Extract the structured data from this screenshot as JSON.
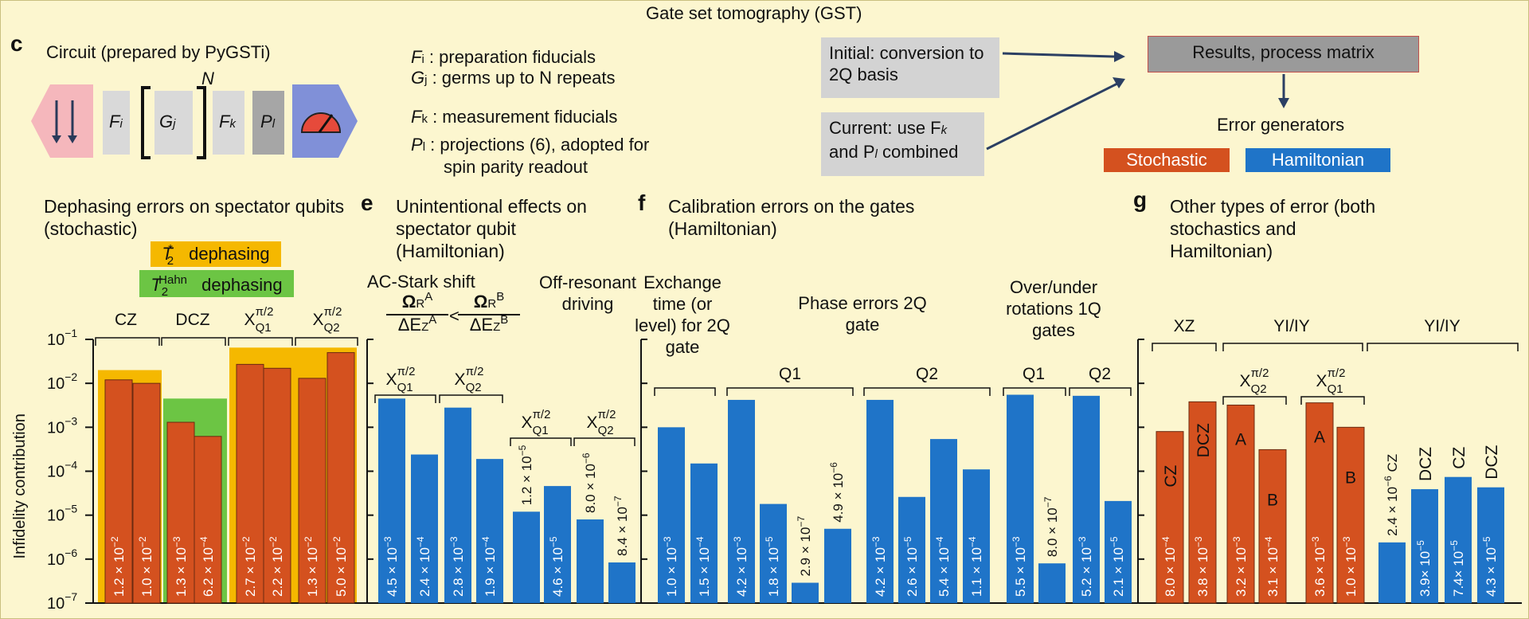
{
  "figure_title": "Gate set tomography (GST)",
  "panel_c": {
    "label": "c",
    "circuit_title": "Circuit (prepared by PyGSTi)",
    "boxes": [
      "F",
      "G",
      "F",
      "P"
    ],
    "box_subs": [
      "i",
      "j",
      "k",
      "l"
    ],
    "exponent": "N",
    "legend": [
      {
        "sym": "F",
        "sub": "i",
        "text": " : preparation fiducials"
      },
      {
        "sym": "G",
        "sub": "j",
        "text": " : germs up to N repeats"
      },
      {
        "sym": "F",
        "sub": "k",
        "text": " : measurement fiducials"
      },
      {
        "sym": "P",
        "sub": "l",
        "text": " : projections (6), adopted for"
      }
    ],
    "legend_cont": "spin parity readout"
  },
  "flow": {
    "initial": "Initial: conversion to 2Q basis",
    "current": "Current: use F",
    "current_sub_k": "k",
    "current_mid": "and P",
    "current_sub_l": "l",
    "current_end": " combined",
    "results": "Results, process matrix",
    "error_generators": "Error generators",
    "stochastic": "Stochastic",
    "hamiltonian": "Hamiltonian"
  },
  "panel_d": {
    "title": "Dephasing errors on spectator qubits (stochastic)",
    "t2star_sym": "T",
    "t2star_sub": "2",
    "t2star_sup": "*",
    "t2star_text": " dephasing",
    "t2hahn_sym": "T",
    "t2hahn_sub": "2",
    "t2hahn_sup": "Hahn",
    "t2hahn_text": " dephasing"
  },
  "panel_e": {
    "label": "e",
    "title": "Unintentional effects on spectator qubit (Hamiltonian)",
    "acstark": "AC-Stark shift",
    "frac_a_num": "Ω",
    "frac_a_num_sub": "R",
    "frac_a_num_sup": "A",
    "frac_a_den": "ΔE",
    "frac_a_den_sub": "Z",
    "frac_a_den_sup": "A",
    "lt": "<",
    "frac_b_num_sup": "B",
    "frac_b_den_sup": "B",
    "offres": "Off-resonant driving"
  },
  "panel_f": {
    "label": "f",
    "title": "Calibration errors on the gates (Hamiltonian)",
    "exchange": "Exchange time (or level) for 2Q gate",
    "phase2q": "Phase errors 2Q gate",
    "overunder": "Over/under rotations 1Q gates"
  },
  "panel_g": {
    "label": "g",
    "title": "Other types of error (both stochastics and Hamiltonian)"
  },
  "group_labels": {
    "cz": "CZ",
    "dcz": "DCZ",
    "xq1": "X",
    "xq2": "X",
    "q1": "Q1",
    "q2": "Q2",
    "xz": "XZ",
    "yiiy": "YI/IY",
    "pi2": "π/2",
    "Q1": "Q1",
    "Q2": "Q2"
  },
  "colors": {
    "stochastic": "#d4511f",
    "hamiltonian": "#1f74c8",
    "t2star": "#f5b800",
    "t2hahn": "#6cc544",
    "background": "#fcf6cf",
    "gray": "#d3d3d3",
    "results_box": "#9a9a9a"
  },
  "chart_data": {
    "type": "bar",
    "title": "Gate set tomography (GST)",
    "ylabel": "Infidelity contribution",
    "yscale": "log",
    "ylim": [
      1e-07,
      0.1
    ],
    "yticks": [
      {
        "v": 0.1,
        "m": "10",
        "e": "−1"
      },
      {
        "v": 0.01,
        "m": "10",
        "e": "−2"
      },
      {
        "v": 0.001,
        "m": "10",
        "e": "−3"
      },
      {
        "v": 0.0001,
        "m": "10",
        "e": "−4"
      },
      {
        "v": 1e-05,
        "m": "10",
        "e": "−5"
      },
      {
        "v": 1e-06,
        "m": "10",
        "e": "−6"
      },
      {
        "v": 1e-07,
        "m": "10",
        "e": "−7"
      }
    ],
    "bars": [
      {
        "panel": "d",
        "group": "CZ",
        "kind": "stochastic",
        "value": 0.012,
        "label": "1.2 × 10",
        "exp": "−2"
      },
      {
        "panel": "d",
        "group": "CZ",
        "kind": "stochastic",
        "value": 0.01,
        "label": "1.0 × 10",
        "exp": "−2"
      },
      {
        "panel": "d",
        "group": "DCZ",
        "kind": "stochastic",
        "value": 0.0013,
        "label": "1.3 × 10",
        "exp": "−3"
      },
      {
        "panel": "d",
        "group": "DCZ",
        "kind": "stochastic",
        "value": 0.00062,
        "label": "6.2 × 10",
        "exp": "−4"
      },
      {
        "panel": "d",
        "group": "X Q1 π/2",
        "kind": "stochastic",
        "value": 0.027,
        "label": "2.7 × 10",
        "exp": "−2"
      },
      {
        "panel": "d",
        "group": "X Q1 π/2",
        "kind": "stochastic",
        "value": 0.022,
        "label": "2.2 × 10",
        "exp": "−2"
      },
      {
        "panel": "d",
        "group": "X Q2 π/2",
        "kind": "stochastic",
        "value": 0.013,
        "label": "1.3 × 10",
        "exp": "−2"
      },
      {
        "panel": "d",
        "group": "X Q2 π/2",
        "kind": "stochastic",
        "value": 0.05,
        "label": "5.0 × 10",
        "exp": "−2"
      },
      {
        "panel": "e",
        "group": "AC-Stark X Q1",
        "kind": "hamiltonian",
        "value": 0.0045,
        "label": "4.5 × 10",
        "exp": "−3"
      },
      {
        "panel": "e",
        "group": "AC-Stark X Q1",
        "kind": "hamiltonian",
        "value": 0.00024,
        "label": "2.4 × 10",
        "exp": "−4"
      },
      {
        "panel": "e",
        "group": "AC-Stark X Q2",
        "kind": "hamiltonian",
        "value": 0.0028,
        "label": "2.8 × 10",
        "exp": "−3"
      },
      {
        "panel": "e",
        "group": "AC-Stark X Q2",
        "kind": "hamiltonian",
        "value": 0.00019,
        "label": "1.9 × 10",
        "exp": "−4"
      },
      {
        "panel": "e",
        "group": "Off-resonant X Q1",
        "kind": "hamiltonian",
        "value": 1.2e-05,
        "label": "1.2 × 10",
        "exp": "−5"
      },
      {
        "panel": "e",
        "group": "Off-resonant X Q1",
        "kind": "hamiltonian",
        "value": 4.6e-05,
        "label": "4.6 × 10",
        "exp": "−5"
      },
      {
        "panel": "e",
        "group": "Off-resonant X Q2",
        "kind": "hamiltonian",
        "value": 8e-06,
        "label": "8.0 × 10",
        "exp": "−6"
      },
      {
        "panel": "e",
        "group": "Off-resonant X Q2",
        "kind": "hamiltonian",
        "value": 8.4e-07,
        "label": "8.4 × 10",
        "exp": "−7"
      },
      {
        "panel": "f",
        "group": "Exchange",
        "kind": "hamiltonian",
        "value": 0.001,
        "label": "1.0 × 10",
        "exp": "−3"
      },
      {
        "panel": "f",
        "group": "Exchange",
        "kind": "hamiltonian",
        "value": 0.00015,
        "label": "1.5 × 10",
        "exp": "−4"
      },
      {
        "panel": "f",
        "group": "Phase 2Q Q1",
        "kind": "hamiltonian",
        "value": 0.0042,
        "label": "4.2 × 10",
        "exp": "−3"
      },
      {
        "panel": "f",
        "group": "Phase 2Q Q1",
        "kind": "hamiltonian",
        "value": 1.8e-05,
        "label": "1.8 × 10",
        "exp": "−5"
      },
      {
        "panel": "f",
        "group": "Phase 2Q Q1",
        "kind": "hamiltonian",
        "value": 2.9e-07,
        "label": "2.9 × 10",
        "exp": "−7"
      },
      {
        "panel": "f",
        "group": "Phase 2Q Q1",
        "kind": "hamiltonian",
        "value": 4.9e-06,
        "label": "4.9 × 10",
        "exp": "−6"
      },
      {
        "panel": "f",
        "group": "Phase 2Q Q2",
        "kind": "hamiltonian",
        "value": 0.0042,
        "label": "4.2 × 10",
        "exp": "−3"
      },
      {
        "panel": "f",
        "group": "Phase 2Q Q2",
        "kind": "hamiltonian",
        "value": 2.6e-05,
        "label": "2.6 × 10",
        "exp": "−5"
      },
      {
        "panel": "f",
        "group": "Phase 2Q Q2",
        "kind": "hamiltonian",
        "value": 0.00054,
        "label": "5.4 × 10",
        "exp": "−4"
      },
      {
        "panel": "f",
        "group": "Phase 2Q Q2",
        "kind": "hamiltonian",
        "value": 0.00011,
        "label": "1.1 × 10",
        "exp": "−4"
      },
      {
        "panel": "f",
        "group": "Over/under Q1",
        "kind": "hamiltonian",
        "value": 0.0055,
        "label": "5.5 × 10",
        "exp": "−3"
      },
      {
        "panel": "f",
        "group": "Over/under Q1",
        "kind": "hamiltonian",
        "value": 8e-07,
        "label": "8.0 × 10",
        "exp": "−7"
      },
      {
        "panel": "f",
        "group": "Over/under Q2",
        "kind": "hamiltonian",
        "value": 0.0052,
        "label": "5.2 × 10",
        "exp": "−3"
      },
      {
        "panel": "f",
        "group": "Over/under Q2",
        "kind": "hamiltonian",
        "value": 2.1e-05,
        "label": "2.1 × 10",
        "exp": "−5"
      },
      {
        "panel": "g",
        "group": "XZ",
        "kind": "stochastic",
        "value": 0.0008,
        "label": "8.0 × 10",
        "exp": "−4",
        "tag": "CZ"
      },
      {
        "panel": "g",
        "group": "XZ",
        "kind": "stochastic",
        "value": 0.0038,
        "label": "3.8 × 10",
        "exp": "−3",
        "tag": "DCZ"
      },
      {
        "panel": "g",
        "group": "YI/IY X Q2",
        "kind": "stochastic",
        "value": 0.0032,
        "label": "3.2 × 10",
        "exp": "−3",
        "tag": "A"
      },
      {
        "panel": "g",
        "group": "YI/IY X Q2",
        "kind": "stochastic",
        "value": 0.00031,
        "label": "3.1 × 10",
        "exp": "−4",
        "tag": "B"
      },
      {
        "panel": "g",
        "group": "YI/IY X Q1",
        "kind": "stochastic",
        "value": 0.0036,
        "label": "3.6 × 10",
        "exp": "−3",
        "tag": "A"
      },
      {
        "panel": "g",
        "group": "YI/IY X Q1",
        "kind": "stochastic",
        "value": 0.001,
        "label": "1.0 × 10",
        "exp": "−3",
        "tag": "B"
      },
      {
        "panel": "g",
        "group": "YI/IY",
        "kind": "hamiltonian",
        "value": 2.4e-06,
        "label": "2.4 × 10",
        "exp": "−6",
        "tag": "CZ",
        "inline": true
      },
      {
        "panel": "g",
        "group": "YI/IY",
        "kind": "hamiltonian",
        "value": 3.9e-05,
        "label": "3.9× 10",
        "exp": "−5",
        "tag": "DCZ"
      },
      {
        "panel": "g",
        "group": "YI/IY",
        "kind": "hamiltonian",
        "value": 7.4e-05,
        "label": "7.4× 10",
        "exp": "−5",
        "tag": "CZ"
      },
      {
        "panel": "g",
        "group": "YI/IY",
        "kind": "hamiltonian",
        "value": 4.3e-05,
        "label": "4.3 × 10",
        "exp": "−5",
        "tag": "DCZ"
      }
    ],
    "shaded_regions": [
      {
        "kind": "t2star",
        "value": 0.02
      },
      {
        "kind": "t2hahn",
        "value": 0.0045
      },
      {
        "kind": "t2star",
        "value": 0.065
      }
    ]
  }
}
